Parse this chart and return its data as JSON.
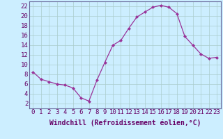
{
  "x": [
    0,
    1,
    2,
    3,
    4,
    5,
    6,
    7,
    8,
    9,
    10,
    11,
    12,
    13,
    14,
    15,
    16,
    17,
    18,
    19,
    20,
    21,
    22,
    23
  ],
  "y": [
    8.5,
    7.0,
    6.5,
    6.0,
    5.8,
    5.2,
    3.2,
    2.5,
    6.8,
    10.5,
    14.0,
    15.0,
    17.5,
    19.8,
    20.8,
    21.8,
    22.2,
    21.8,
    20.5,
    15.8,
    14.0,
    12.2,
    11.3,
    11.5
  ],
  "line_color": "#993399",
  "marker": "D",
  "marker_size": 2,
  "bg_color": "#cceeff",
  "grid_color": "#aacccc",
  "xlabel": "Windchill (Refroidissement éolien,°C)",
  "xlim": [
    -0.5,
    23.5
  ],
  "ylim": [
    1,
    23
  ],
  "yticks": [
    2,
    4,
    6,
    8,
    10,
    12,
    14,
    16,
    18,
    20,
    22
  ],
  "xticks": [
    0,
    1,
    2,
    3,
    4,
    5,
    6,
    7,
    8,
    9,
    10,
    11,
    12,
    13,
    14,
    15,
    16,
    17,
    18,
    19,
    20,
    21,
    22,
    23
  ],
  "axis_color": "#660066",
  "tick_font_size": 6.5,
  "xlabel_font_size": 7
}
